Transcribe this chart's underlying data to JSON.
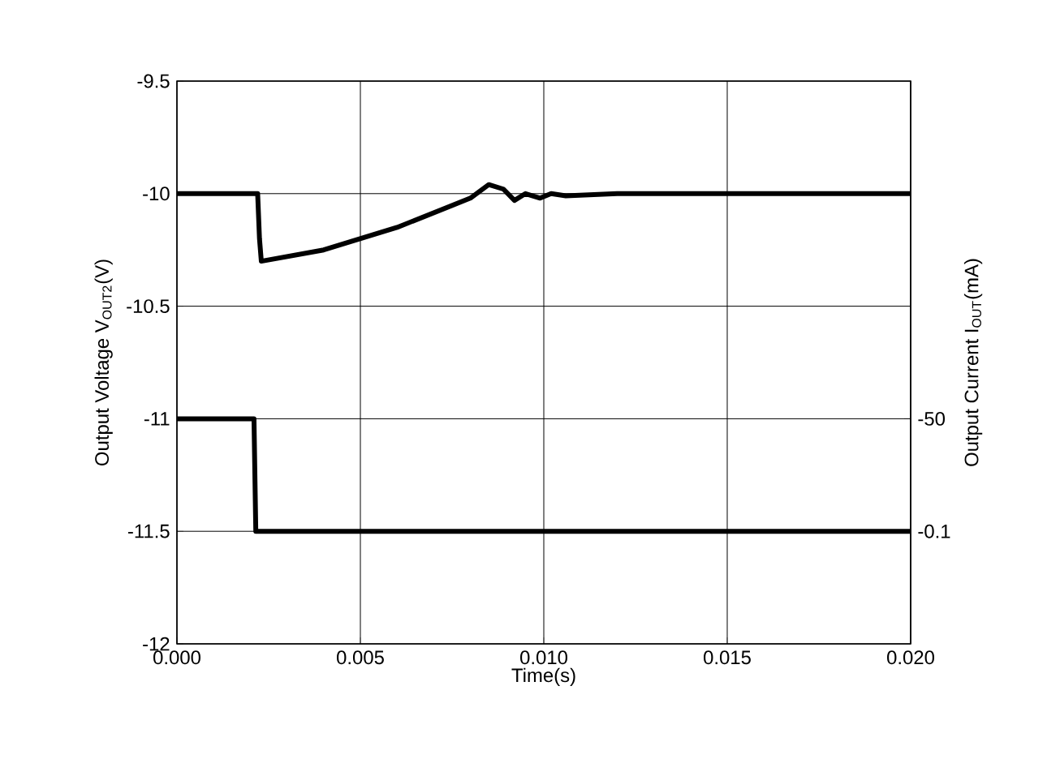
{
  "chart_data": {
    "type": "line",
    "xlabel": "Time(s)",
    "ylabel": "Output Voltage V$_{OUT2}$(V)",
    "y2label": "Output Current I$_{OUT}$(mA)",
    "xlim": [
      0,
      0.02
    ],
    "xticks": [
      {
        "value": 0,
        "label": "0.000"
      },
      {
        "value": 0.005,
        "label": "0.005"
      },
      {
        "value": 0.01,
        "label": "0.010"
      },
      {
        "value": 0.015,
        "label": "0.015"
      },
      {
        "value": 0.02,
        "label": "0.020"
      }
    ],
    "ylim": [
      -12,
      -9.5
    ],
    "yticks": [
      -12,
      -11.5,
      -11,
      -10.5,
      -10,
      -9.5
    ],
    "y2lim": [
      49.8,
      -199.7
    ],
    "y2ticks": [
      -50,
      -0.1
    ],
    "grid": true,
    "marker": "none",
    "line_style": "solid",
    "series": [
      {
        "color": "#000000",
        "x": [
          0,
          0.0022,
          0.00225,
          0.0023,
          0.004,
          0.006,
          0.008,
          0.0085,
          0.0089,
          0.0092,
          0.0095,
          0.0099,
          0.0102,
          0.0106,
          0.012,
          0.02
        ],
        "values": [
          -10,
          -10,
          -10.2,
          -10.3,
          -10.25,
          -10.15,
          -10.02,
          -9.96,
          -9.98,
          -10.03,
          -10.0,
          -10.02,
          -10.0,
          -10.01,
          -10.0,
          -10.0
        ]
      },
      {
        "color": "#000000",
        "axis": "y2",
        "x": [
          0,
          0.0021,
          0.00215,
          0.02
        ],
        "values": [
          -50,
          -50,
          -0.1,
          -0.1
        ]
      }
    ]
  }
}
